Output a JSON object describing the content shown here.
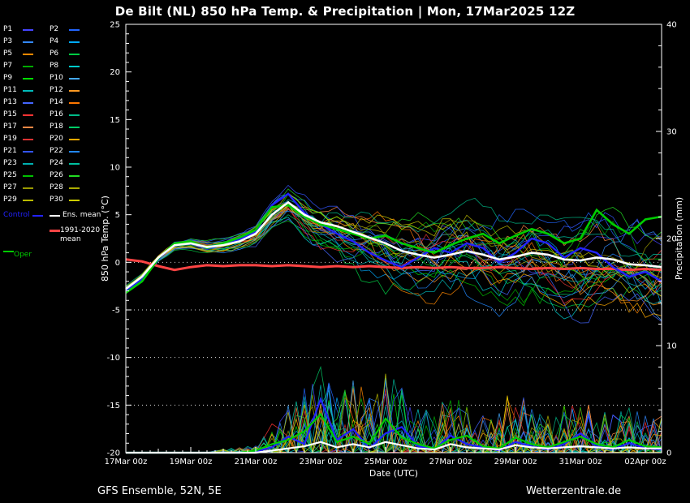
{
  "header": {
    "title": "De Bilt  (NL)  850 hPa Temp. & Precipitation | Mon, 17Mar2025 12Z"
  },
  "footer": {
    "left": "GFS Ensemble, 52N, 5E",
    "right": "Wetterzentrale.de"
  },
  "legend": {
    "members": [
      {
        "label": "P1",
        "color": "#4444ff"
      },
      {
        "label": "P2",
        "color": "#2266ff"
      },
      {
        "label": "P3",
        "color": "#3388ff"
      },
      {
        "label": "P4",
        "color": "#00aaff"
      },
      {
        "label": "P5",
        "color": "#ff8800"
      },
      {
        "label": "P6",
        "color": "#00cc44"
      },
      {
        "label": "P7",
        "color": "#00aa00"
      },
      {
        "label": "P8",
        "color": "#00cccc"
      },
      {
        "label": "P9",
        "color": "#00dd00"
      },
      {
        "label": "P10",
        "color": "#44aaff"
      },
      {
        "label": "P11",
        "color": "#00bbbb"
      },
      {
        "label": "P12",
        "color": "#ff9922"
      },
      {
        "label": "P13",
        "color": "#4466ff"
      },
      {
        "label": "P14",
        "color": "#ff7700"
      },
      {
        "label": "P15",
        "color": "#ff3333"
      },
      {
        "label": "P16",
        "color": "#00bb88"
      },
      {
        "label": "P17",
        "color": "#ff8844"
      },
      {
        "label": "P18",
        "color": "#00cc66"
      },
      {
        "label": "P19",
        "color": "#dd3333"
      },
      {
        "label": "P20",
        "color": "#ffaa00"
      },
      {
        "label": "P21",
        "color": "#3355ff"
      },
      {
        "label": "P22",
        "color": "#2288ff"
      },
      {
        "label": "P23",
        "color": "#00b0b0"
      },
      {
        "label": "P24",
        "color": "#00c0a0"
      },
      {
        "label": "P25",
        "color": "#00c000"
      },
      {
        "label": "P26",
        "color": "#22dd22"
      },
      {
        "label": "P27",
        "color": "#999900"
      },
      {
        "label": "P28",
        "color": "#aaaa00"
      },
      {
        "label": "P29",
        "color": "#bbbb00"
      },
      {
        "label": "P30",
        "color": "#cccc00"
      }
    ],
    "control": {
      "label": "Control",
      "color": "#2222ff"
    },
    "ens_mean": {
      "label": "Ens. mean",
      "color": "#ffffff"
    },
    "clim": {
      "label_line1": "1991-2020",
      "label_line2": "mean",
      "color": "#ff4444"
    },
    "oper": {
      "label": "Oper",
      "color": "#00cc00"
    }
  },
  "chart_data": {
    "type": "line",
    "title": "De Bilt (NL) 850 hPa Temp. & Precipitation | Mon, 17Mar2025 12Z",
    "xlabel": "Date (UTC)",
    "ylabel_left": "850 hPa Temp. (°C)",
    "ylabel_right": "Precipitation (mm)",
    "temp_axis": {
      "min": -20,
      "max": 25,
      "step": 5
    },
    "precip_axis": {
      "min": 0,
      "max": 40,
      "step": 10
    },
    "grid_temp_lines": [
      0,
      -5,
      -10,
      -15
    ],
    "x_hours": [
      0,
      12,
      24,
      36,
      48,
      60,
      72,
      84,
      96,
      108,
      120,
      132,
      144,
      156,
      168,
      180,
      192,
      204,
      216,
      228,
      240,
      252,
      264,
      276,
      288,
      300,
      312,
      324,
      336,
      348,
      360,
      372,
      384,
      396
    ],
    "x_tick_hours": [
      0,
      48,
      96,
      144,
      192,
      240,
      288,
      336,
      384
    ],
    "x_tick_labels": [
      "17Mar 00z",
      "19Mar 00z",
      "21Mar 00z",
      "23Mar 00z",
      "25Mar 00z",
      "27Mar 00z",
      "29Mar 00z",
      "31Mar 00z",
      "02Apr 00z"
    ],
    "series": {
      "ens_mean_temp": [
        -2.8,
        -1.5,
        0.5,
        1.8,
        2.0,
        1.6,
        1.8,
        2.2,
        3.0,
        5.0,
        6.3,
        5.0,
        4.2,
        3.8,
        3.2,
        2.6,
        2.0,
        1.2,
        0.8,
        0.5,
        0.8,
        1.2,
        0.8,
        0.3,
        0.6,
        1.0,
        0.8,
        0.3,
        0.2,
        0.5,
        0.3,
        -0.2,
        -0.3,
        -0.5
      ],
      "control_temp": [
        -3.0,
        -1.8,
        0.3,
        1.9,
        2.1,
        1.4,
        1.9,
        2.4,
        3.2,
        6.0,
        7.2,
        5.2,
        4.0,
        3.0,
        2.2,
        1.0,
        0.2,
        -0.5,
        0.5,
        1.5,
        1.0,
        2.0,
        1.5,
        0.0,
        1.0,
        2.5,
        2.0,
        0.5,
        1.5,
        1.0,
        -0.5,
        -1.5,
        -1.0,
        -2.0
      ],
      "oper_temp": [
        -3.2,
        -2.0,
        0.4,
        2.0,
        2.2,
        1.5,
        2.0,
        2.6,
        3.4,
        5.8,
        6.0,
        4.8,
        4.0,
        3.5,
        3.0,
        2.5,
        2.8,
        2.0,
        1.5,
        1.0,
        1.8,
        2.5,
        3.0,
        2.0,
        2.8,
        3.5,
        3.0,
        2.0,
        2.5,
        5.5,
        4.0,
        3.0,
        4.5,
        4.8
      ],
      "clim_mean_temp": [
        0.3,
        0.1,
        -0.4,
        -0.8,
        -0.5,
        -0.3,
        -0.4,
        -0.3,
        -0.3,
        -0.4,
        -0.3,
        -0.4,
        -0.5,
        -0.4,
        -0.5,
        -0.4,
        -0.5,
        -0.6,
        -0.5,
        -0.6,
        -0.5,
        -0.6,
        -0.6,
        -0.5,
        -0.6,
        -0.7,
        -0.6,
        -0.7,
        -0.6,
        -0.7,
        -0.7,
        -0.8,
        -0.7,
        -0.8
      ],
      "ens_mean_precip": [
        0,
        0,
        0,
        0,
        0,
        0,
        0,
        0,
        0,
        0.2,
        0.4,
        0.6,
        1.0,
        0.5,
        0.8,
        0.5,
        1.0,
        0.7,
        0.4,
        0.3,
        0.8,
        0.5,
        0.4,
        0.3,
        0.7,
        0.5,
        0.4,
        0.5,
        0.6,
        0.5,
        0.4,
        0.5,
        0.4,
        0.4
      ],
      "control_precip": [
        0,
        0,
        0,
        0,
        0,
        0,
        0,
        0,
        0.1,
        0.5,
        1.5,
        0.8,
        5.0,
        1.2,
        2.2,
        0.4,
        1.8,
        2.4,
        0.6,
        0.3,
        1.6,
        0.8,
        0.5,
        0.2,
        1.0,
        0.6,
        0.3,
        0.8,
        1.8,
        0.6,
        0.3,
        0.9,
        0.4,
        0.3
      ],
      "oper_precip": [
        0,
        0,
        0,
        0,
        0,
        0,
        0,
        0,
        0.2,
        0.8,
        1.2,
        2.0,
        3.6,
        1.0,
        1.5,
        0.8,
        3.2,
        1.4,
        0.8,
        0.4,
        1.2,
        1.6,
        0.6,
        0.4,
        1.4,
        0.8,
        0.5,
        1.0,
        1.5,
        0.8,
        0.5,
        1.2,
        0.6,
        0.5
      ]
    },
    "ensemble": {
      "count": 30,
      "seed": 42,
      "temp_spread": [
        0.4,
        0.5,
        0.5,
        0.6,
        0.7,
        0.8,
        0.9,
        1.0,
        1.4,
        2.0,
        2.5,
        3.0,
        3.5,
        3.8,
        4.2,
        4.5,
        4.8,
        5.0,
        5.2,
        5.4,
        5.5,
        5.6,
        5.7,
        5.8,
        5.9,
        6.0,
        6.0,
        6.1,
        6.2,
        6.3,
        6.4,
        6.5,
        6.5,
        6.6
      ],
      "precip_envelope": [
        0,
        0,
        0,
        0,
        0,
        0,
        0.2,
        0.3,
        0.5,
        1.5,
        2.5,
        3.5,
        5.0,
        3.0,
        4.0,
        3.0,
        5.0,
        3.5,
        2.5,
        2.0,
        3.5,
        2.5,
        2.0,
        2.5,
        3.5,
        2.5,
        2.0,
        2.5,
        3.0,
        2.5,
        2.0,
        2.5,
        2.0,
        2.0
      ]
    }
  }
}
